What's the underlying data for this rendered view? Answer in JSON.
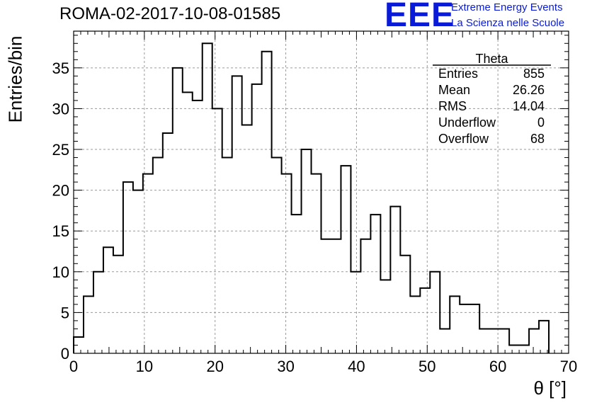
{
  "header": {
    "title": "ROMA-02-2017-10-08-01585",
    "logo_text": "EEE",
    "logo_line1": "Extreme Energy Events",
    "logo_line2": "La Scienza nelle Scuole",
    "logo_color": "#0a1bd8"
  },
  "stats_box": {
    "title": "Theta",
    "rows": [
      {
        "label": "Entries",
        "value": "855"
      },
      {
        "label": "Mean",
        "value": "26.26"
      },
      {
        "label": "RMS",
        "value": "14.04"
      },
      {
        "label": "Underflow",
        "value": "0"
      },
      {
        "label": "Overflow",
        "value": "68"
      }
    ]
  },
  "chart_data": {
    "type": "bar",
    "style": "step-histogram",
    "title": "ROMA-02-2017-10-08-01585",
    "xlabel": "θ [°]",
    "ylabel": "Entries/bin",
    "xlim": [
      0,
      70
    ],
    "ylim": [
      0,
      39.5
    ],
    "xticks": [
      0,
      10,
      20,
      30,
      40,
      50,
      60,
      70
    ],
    "yticks": [
      0,
      5,
      10,
      15,
      20,
      25,
      30,
      35
    ],
    "grid": true,
    "bin_edges": [
      0,
      1.4,
      2.8,
      4.2,
      5.6,
      7.0,
      8.4,
      9.8,
      11.2,
      12.6,
      14.0,
      15.4,
      16.8,
      18.2,
      19.6,
      21.0,
      22.4,
      23.8,
      25.2,
      26.6,
      28.0,
      29.4,
      30.8,
      32.2,
      33.6,
      35.0,
      36.4,
      37.8,
      39.2,
      40.6,
      42.0,
      43.4,
      44.8,
      46.2,
      47.6,
      49.0,
      50.4,
      51.8,
      53.2,
      54.6,
      56.0,
      57.4,
      58.8,
      60.2,
      61.6,
      63.0,
      64.4,
      65.8,
      67.2
    ],
    "values": [
      2,
      7,
      10,
      13,
      12,
      21,
      20,
      22,
      24,
      27,
      35,
      32,
      31,
      38,
      30,
      24,
      34,
      28,
      33,
      37,
      24,
      22,
      17,
      25,
      22,
      14,
      14,
      23,
      10,
      14,
      17,
      9,
      18,
      12,
      7,
      8,
      10,
      3,
      7,
      6,
      6,
      3,
      3,
      3,
      1,
      1,
      3,
      4
    ]
  }
}
